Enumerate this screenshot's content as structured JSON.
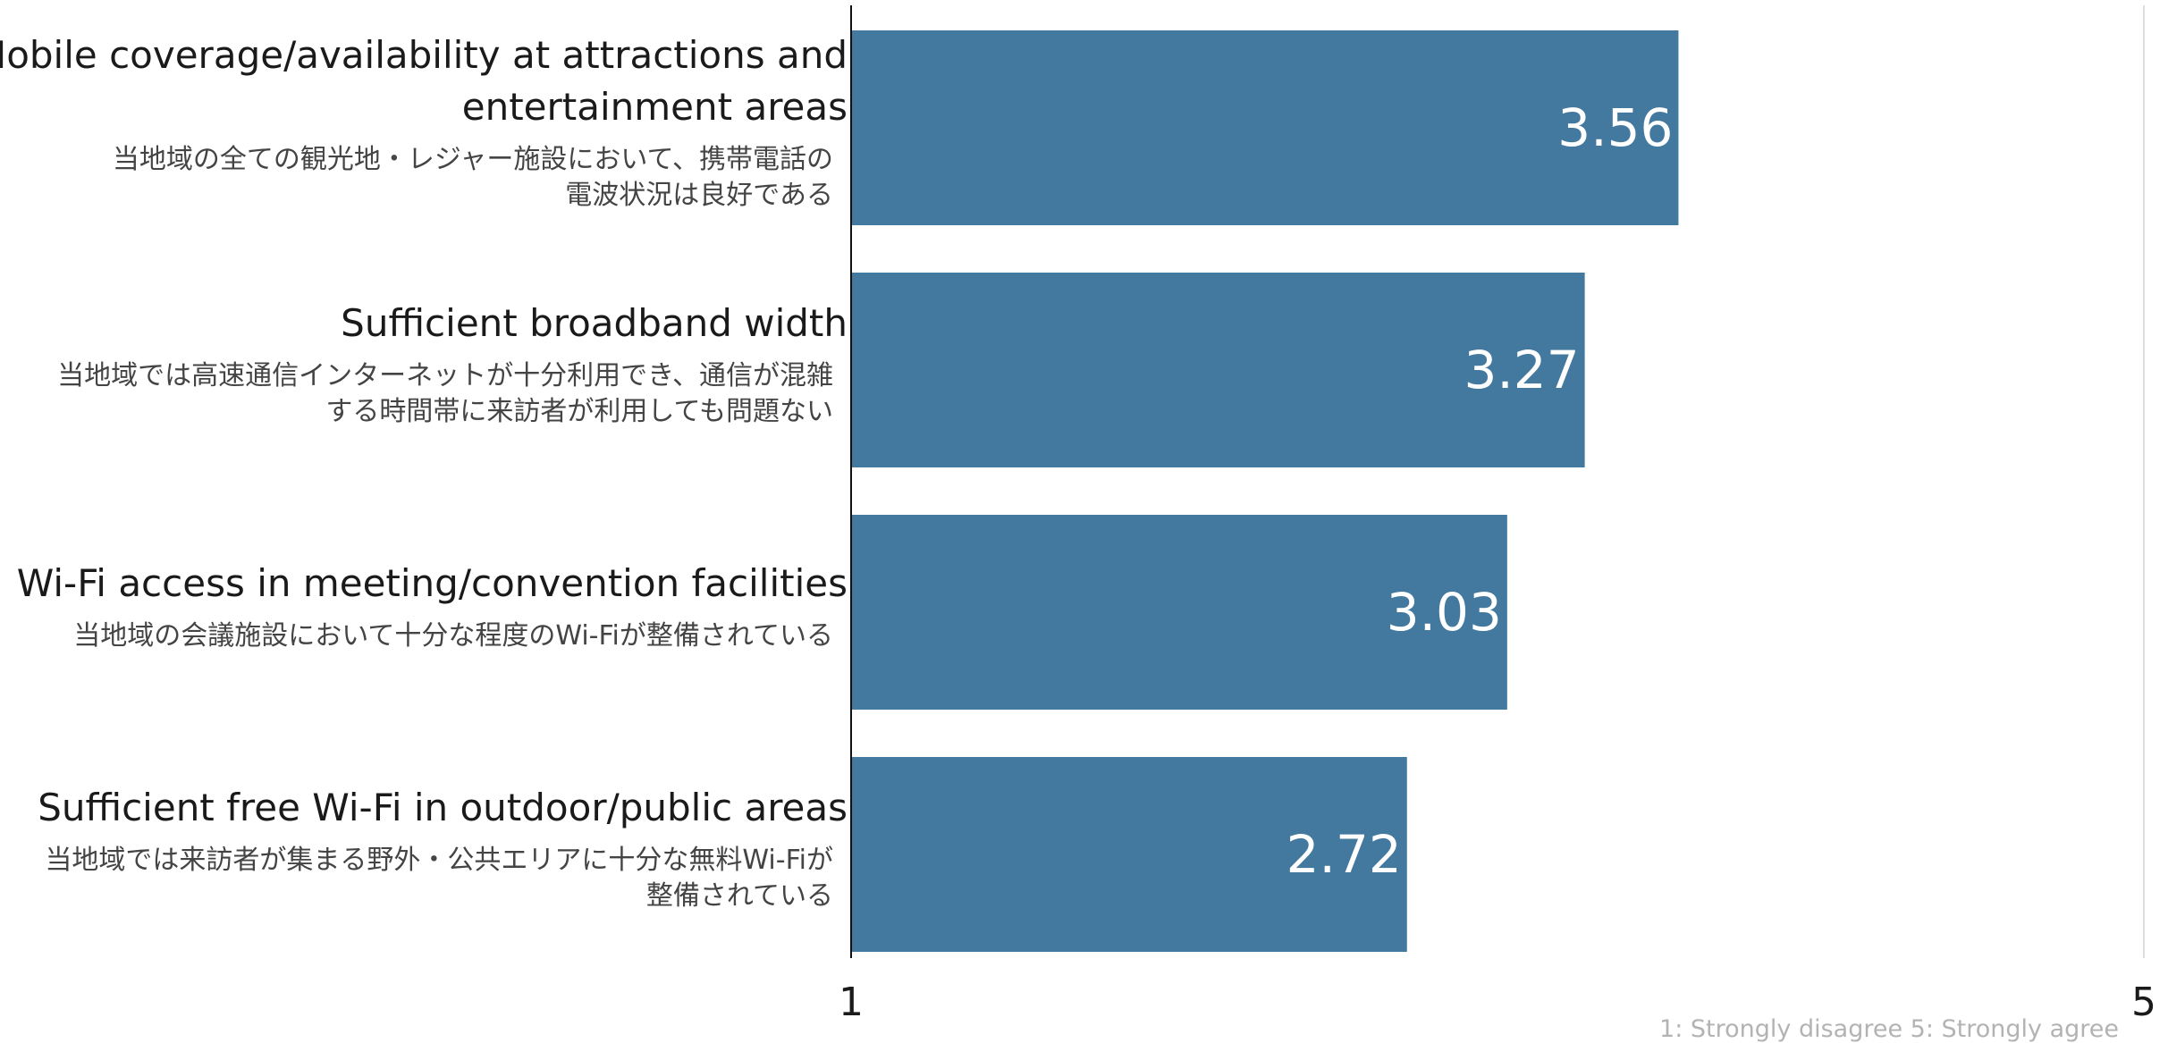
{
  "chart_data": {
    "type": "bar",
    "orientation": "horizontal",
    "xlim": [
      1,
      5
    ],
    "bar_color": "#43799f",
    "categories": [
      {
        "label_en": [
          "Mobile coverage/availability at attractions and",
          "entertainment areas"
        ],
        "label_ja": [
          "当地域の全ての観光地・レジャー施設において、携帯電話の",
          "電波状況は良好である"
        ],
        "value": 3.56,
        "value_label": "3.56"
      },
      {
        "label_en": [
          "Sufficient broadband width"
        ],
        "label_ja": [
          "当地域では高速通信インターネットが十分利用でき、通信が混雑",
          "する時間帯に来訪者が利用しても問題ない"
        ],
        "value": 3.27,
        "value_label": "3.27"
      },
      {
        "label_en": [
          "Wi-Fi access in meeting/convention facilities"
        ],
        "label_ja": [
          "当地域の会議施設において十分な程度のWi-Fiが整備されている"
        ],
        "value": 3.03,
        "value_label": "3.03"
      },
      {
        "label_en": [
          "Sufficient free Wi-Fi in outdoor/public areas"
        ],
        "label_ja": [
          "当地域では来訪者が集まる野外・公共エリアに十分な無料Wi-Fiが",
          "整備されている"
        ],
        "value": 2.72,
        "value_label": "2.72"
      }
    ],
    "x_ticks": [
      "1",
      "5"
    ],
    "scale_note": "1: Strongly disagree  5: Strongly agree"
  }
}
